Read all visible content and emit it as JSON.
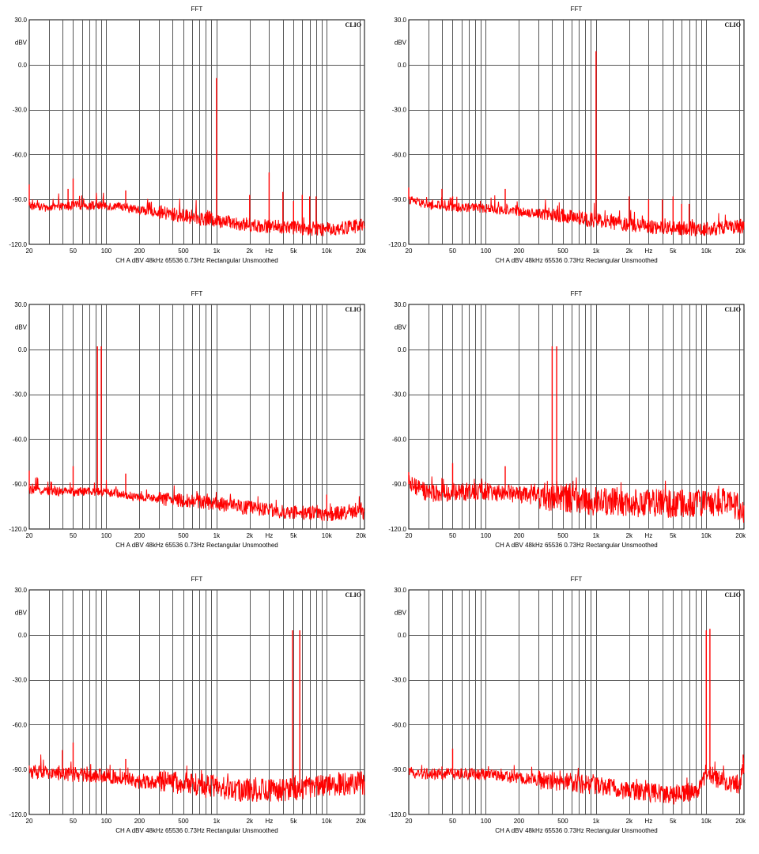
{
  "colors": {
    "trace": "#ff0000",
    "grid": "#000000",
    "background": "#ffffff"
  },
  "shared_axes": {
    "title": "FFT",
    "brand": "CLIO",
    "y_unit": "dBV",
    "y_ticks": [
      "30.0",
      "0.0",
      "-30.0",
      "-60.0",
      "-90.0",
      "-120.0"
    ],
    "x_ticks": [
      "20",
      "50",
      "100",
      "200",
      "500",
      "1k",
      "2k",
      "Hz",
      "5k",
      "10k",
      "20k"
    ],
    "footer": "CH A   dBV   48kHz   65536   0.73Hz   Rectangular   Unsmoothed"
  },
  "chart_data": [
    {
      "type": "line",
      "title": "FFT",
      "ylabel": "dBV",
      "xscale": "log",
      "xlim": [
        20,
        22000
      ],
      "ylim": [
        -120,
        30
      ],
      "grid": true,
      "series": [
        {
          "color": "#ff0000",
          "noise_floor": [
            [
              20,
              -94
            ],
            [
              30,
              -96
            ],
            [
              50,
              -94
            ],
            [
              100,
              -94
            ],
            [
              200,
              -97
            ],
            [
              500,
              -101
            ],
            [
              1000,
              -104
            ],
            [
              2000,
              -107
            ],
            [
              5000,
              -109
            ],
            [
              10000,
              -110
            ],
            [
              20000,
              -108
            ]
          ],
          "noise_amplitude": 3,
          "peaks": [
            [
              20,
              -80
            ],
            [
              45,
              -83
            ],
            [
              50,
              -76
            ],
            [
              150,
              -84
            ],
            [
              1000,
              -9
            ],
            [
              2000,
              -87
            ],
            [
              3000,
              -72
            ],
            [
              4000,
              -85
            ],
            [
              5000,
              -91
            ],
            [
              6000,
              -87
            ],
            [
              7000,
              -88
            ],
            [
              8000,
              -88
            ],
            [
              20500,
              -103
            ]
          ]
        }
      ]
    },
    {
      "type": "line",
      "title": "FFT",
      "ylabel": "dBV",
      "xscale": "log",
      "xlim": [
        20,
        22000
      ],
      "ylim": [
        -120,
        30
      ],
      "grid": true,
      "series": [
        {
          "color": "#ff0000",
          "noise_floor": [
            [
              20,
              -90
            ],
            [
              30,
              -94
            ],
            [
              50,
              -95
            ],
            [
              100,
              -96
            ],
            [
              200,
              -98
            ],
            [
              500,
              -101
            ],
            [
              1000,
              -104
            ],
            [
              2000,
              -107
            ],
            [
              5000,
              -109
            ],
            [
              10000,
              -110
            ],
            [
              20000,
              -108
            ]
          ],
          "noise_amplitude": 3,
          "peaks": [
            [
              20,
              -82
            ],
            [
              40,
              -83
            ],
            [
              50,
              -88
            ],
            [
              150,
              -83
            ],
            [
              1000,
              9
            ],
            [
              2000,
              -88
            ],
            [
              3000,
              -90
            ],
            [
              4000,
              -90
            ],
            [
              5000,
              -88
            ],
            [
              6000,
              -93
            ],
            [
              7000,
              -93
            ],
            [
              20500,
              -103
            ]
          ]
        }
      ]
    },
    {
      "type": "line",
      "title": "FFT",
      "ylabel": "dBV",
      "xscale": "log",
      "xlim": [
        20,
        22000
      ],
      "ylim": [
        -120,
        30
      ],
      "grid": true,
      "series": [
        {
          "color": "#ff0000",
          "noise_floor": [
            [
              20,
              -94
            ],
            [
              40,
              -95
            ],
            [
              100,
              -95
            ],
            [
              200,
              -99
            ],
            [
              500,
              -101
            ],
            [
              1000,
              -103
            ],
            [
              2000,
              -106
            ],
            [
              5000,
              -109
            ],
            [
              10000,
              -110
            ],
            [
              17000,
              -109
            ],
            [
              20000,
              -106
            ],
            [
              22000,
              -110
            ]
          ],
          "noise_amplitude": 3,
          "peaks": [
            [
              20,
              -81
            ],
            [
              50,
              -78
            ],
            [
              83,
              2
            ],
            [
              90,
              2
            ],
            [
              150,
              -83
            ],
            [
              10000,
              -97
            ],
            [
              20500,
              -103
            ]
          ]
        }
      ]
    },
    {
      "type": "line",
      "title": "FFT",
      "ylabel": "dBV",
      "xscale": "log",
      "xlim": [
        20,
        22000
      ],
      "ylim": [
        -120,
        30
      ],
      "grid": true,
      "series": [
        {
          "color": "#ff0000",
          "noise_floor": [
            [
              20,
              -90
            ],
            [
              30,
              -96
            ],
            [
              100,
              -95
            ],
            [
              200,
              -97
            ],
            [
              500,
              -99
            ],
            [
              1000,
              -102
            ],
            [
              5000,
              -103
            ],
            [
              10000,
              -103
            ],
            [
              16000,
              -101
            ],
            [
              22000,
              -110
            ]
          ],
          "noise_amplitude": 6,
          "peaks": [
            [
              20,
              -82
            ],
            [
              40,
              -86
            ],
            [
              50,
              -76
            ],
            [
              150,
              -78
            ],
            [
              400,
              2
            ],
            [
              440,
              2
            ]
          ]
        }
      ]
    },
    {
      "type": "line",
      "title": "FFT",
      "ylabel": "dBV",
      "xscale": "log",
      "xlim": [
        20,
        22000
      ],
      "ylim": [
        -120,
        30
      ],
      "grid": true,
      "series": [
        {
          "color": "#ff0000",
          "noise_floor": [
            [
              20,
              -91
            ],
            [
              40,
              -93
            ],
            [
              100,
              -94
            ],
            [
              200,
              -98
            ],
            [
              500,
              -99
            ],
            [
              1000,
              -102
            ],
            [
              2000,
              -104
            ],
            [
              4000,
              -104
            ],
            [
              10000,
              -101
            ],
            [
              20000,
              -99
            ],
            [
              22000,
              -100
            ]
          ],
          "noise_amplitude": 5,
          "peaks": [
            [
              40,
              -77
            ],
            [
              50,
              -72
            ],
            [
              150,
              -83
            ],
            [
              4900,
              3
            ],
            [
              5700,
              3
            ]
          ]
        }
      ]
    },
    {
      "type": "line",
      "title": "FFT",
      "ylabel": "dBV",
      "xscale": "log",
      "xlim": [
        20,
        22000
      ],
      "ylim": [
        -120,
        30
      ],
      "grid": true,
      "series": [
        {
          "color": "#ff0000",
          "noise_floor": [
            [
              20,
              -92
            ],
            [
              40,
              -93
            ],
            [
              100,
              -93
            ],
            [
              200,
              -96
            ],
            [
              500,
              -98
            ],
            [
              1000,
              -101
            ],
            [
              2000,
              -104
            ],
            [
              5000,
              -107
            ],
            [
              8000,
              -105
            ],
            [
              10000,
              -92
            ],
            [
              12000,
              -96
            ],
            [
              20000,
              -100
            ],
            [
              22000,
              -86
            ]
          ],
          "noise_amplitude": 4,
          "peaks": [
            [
              40,
              -88
            ],
            [
              50,
              -76
            ],
            [
              10000,
              3
            ],
            [
              10800,
              4
            ],
            [
              22000,
              -80
            ]
          ]
        }
      ]
    }
  ]
}
